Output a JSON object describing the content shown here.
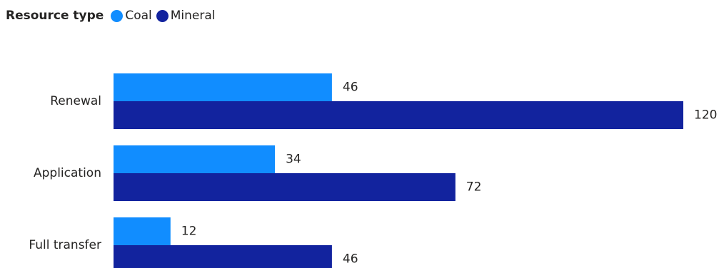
{
  "colors": {
    "coal": "#118DFF",
    "mineral": "#12239E",
    "text": "#252423"
  },
  "legend": {
    "title": "Resource type",
    "items": [
      {
        "label": "Coal",
        "color": "#118DFF"
      },
      {
        "label": "Mineral",
        "color": "#12239E"
      }
    ]
  },
  "chart_data": {
    "type": "bar",
    "orientation": "horizontal",
    "categories": [
      "Renewal",
      "Application",
      "Full transfer"
    ],
    "series": [
      {
        "name": "Coal",
        "values": [
          46,
          34,
          12
        ],
        "color": "#118DFF"
      },
      {
        "name": "Mineral",
        "values": [
          120,
          72,
          46
        ],
        "color": "#12239E"
      }
    ],
    "title": "",
    "xlabel": "",
    "ylabel": "",
    "xlim": [
      0,
      120
    ],
    "grid": false,
    "data_labels": true,
    "legend_position": "top-left"
  }
}
